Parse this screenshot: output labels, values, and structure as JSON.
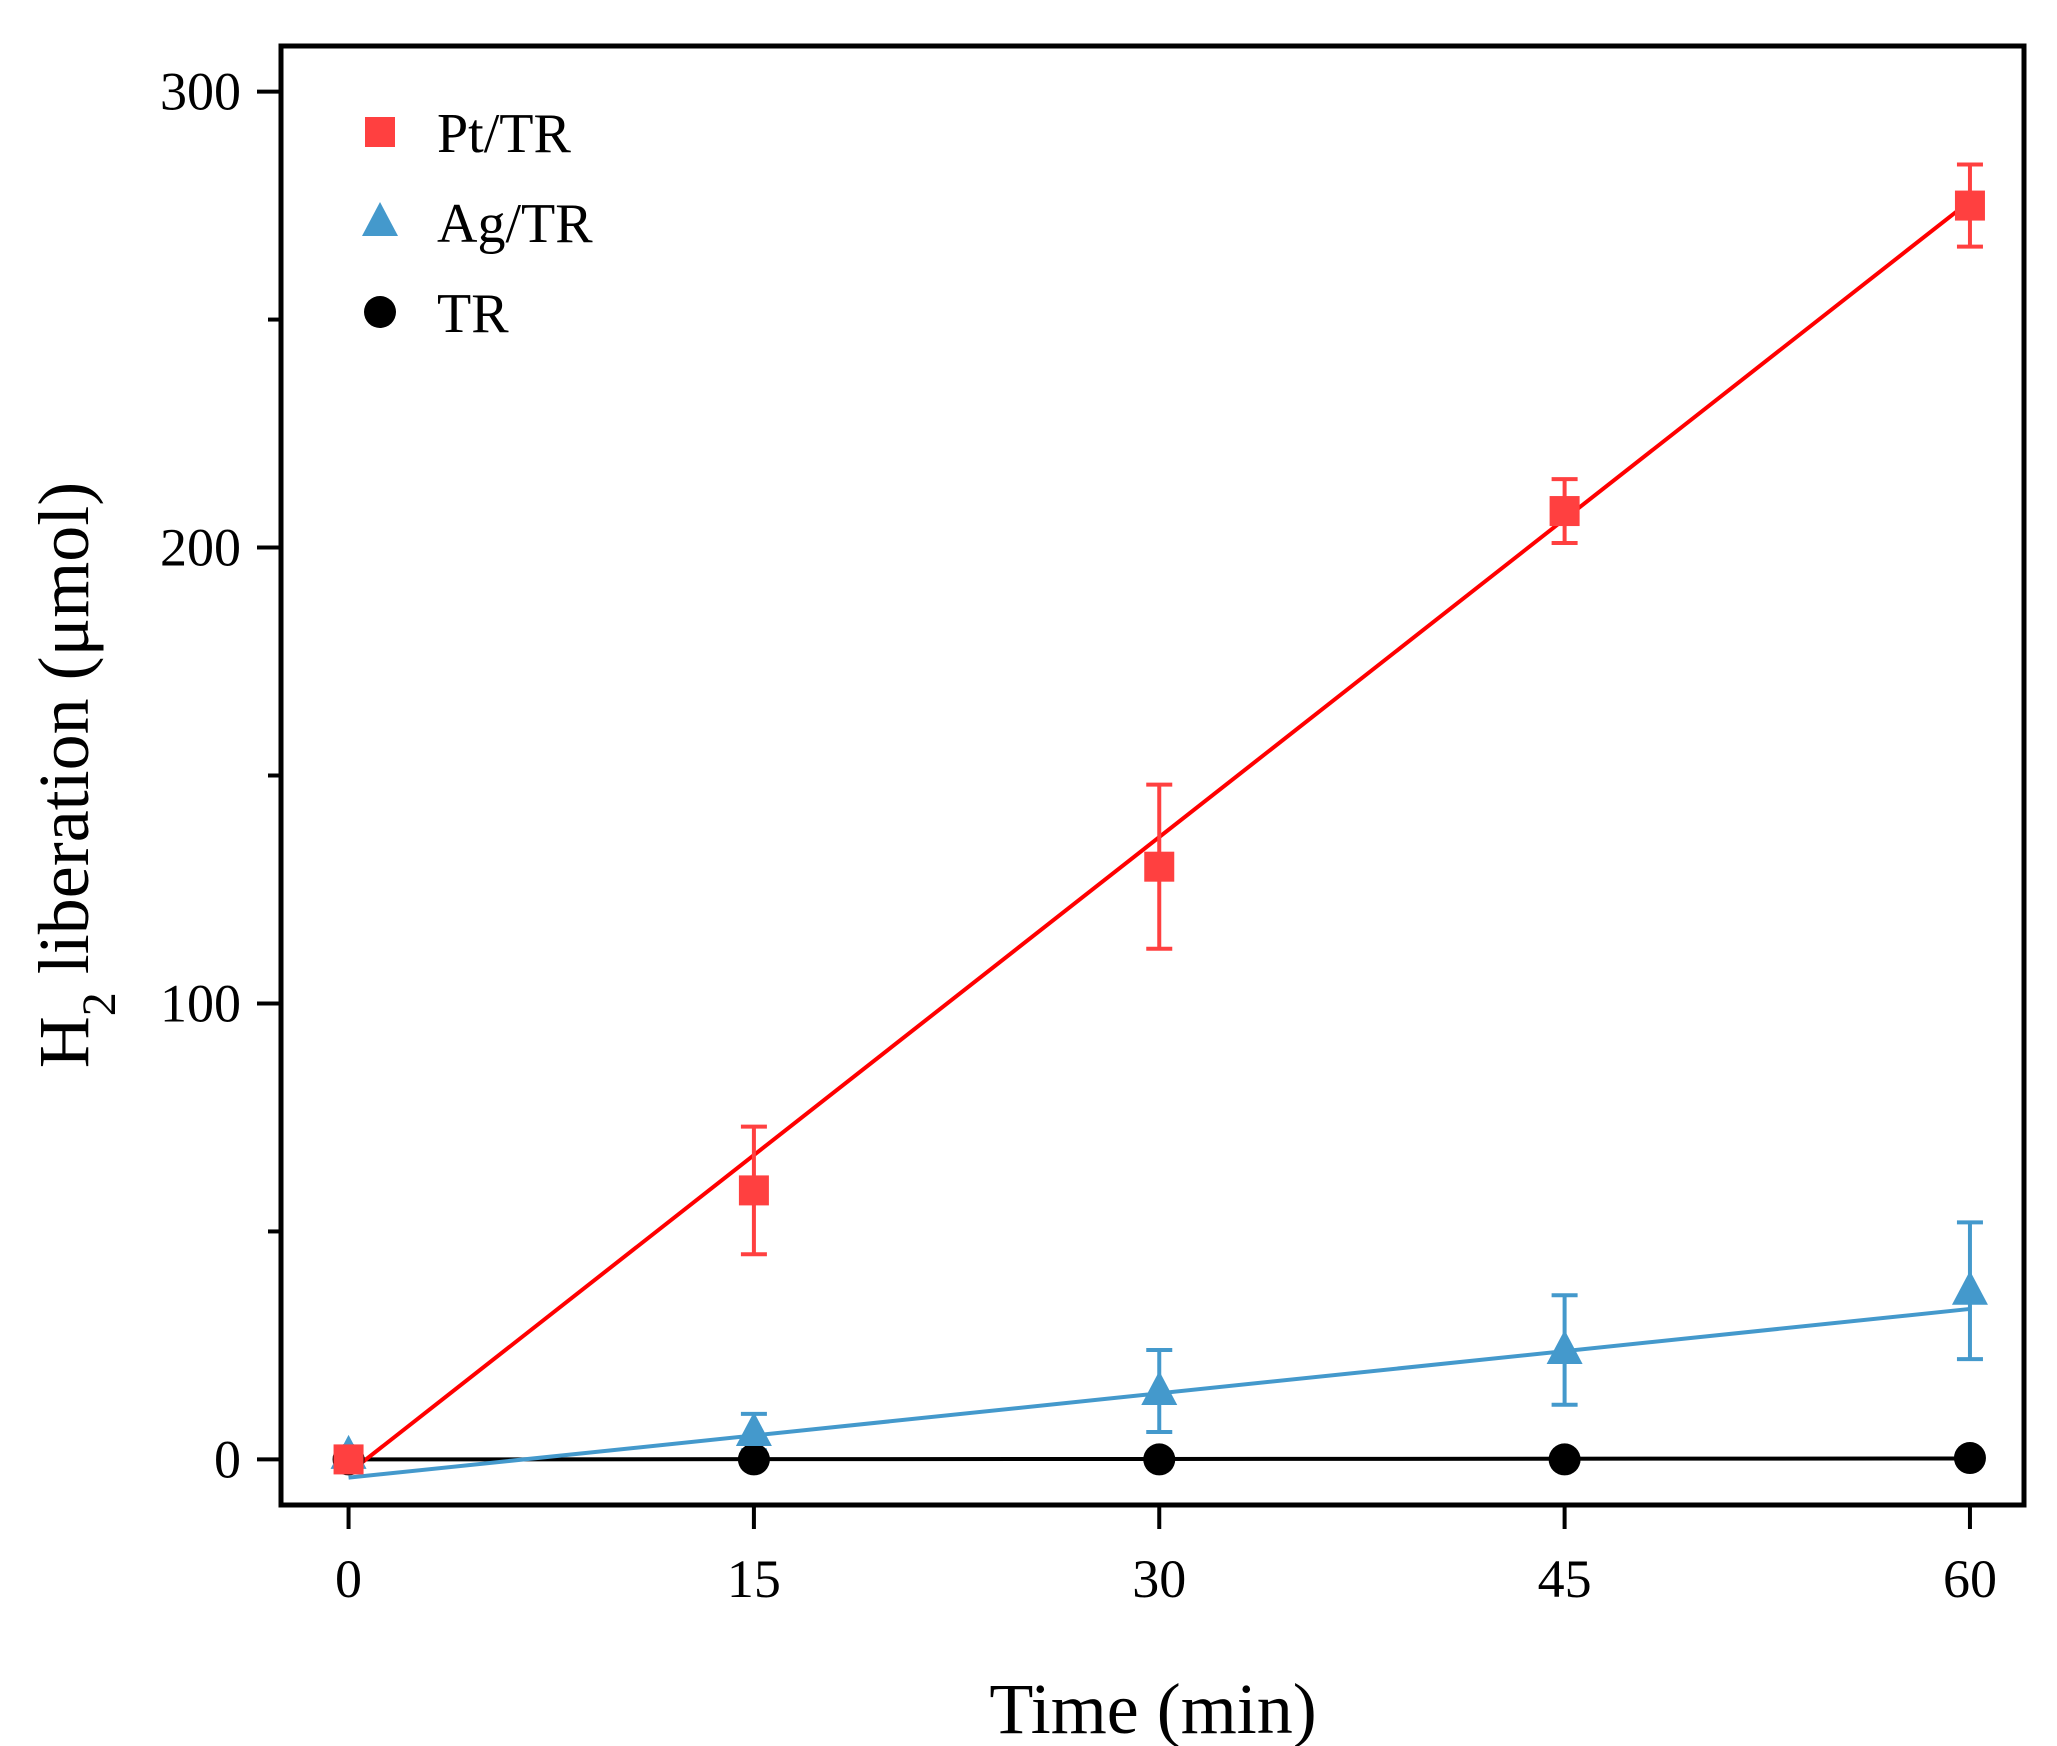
{
  "chart_data": {
    "type": "scatter",
    "title": "",
    "xlabel": "Time (min)",
    "ylabel": {
      "main": "H",
      "subscript": "2",
      "rest": " liberation (μmol)"
    },
    "xlim": [
      -2.5,
      62
    ],
    "ylim": [
      -10,
      310
    ],
    "x_ticks": [
      0,
      15,
      30,
      45,
      60
    ],
    "x_tick_labels": [
      "0",
      "15",
      "30",
      "45",
      "60"
    ],
    "y_ticks": [
      0,
      100,
      200,
      300
    ],
    "y_tick_labels": [
      "0",
      "100",
      "200",
      "300"
    ],
    "y_minor_ticks": [
      50,
      150,
      250
    ],
    "legend_position": "top-left",
    "series": [
      {
        "name": "Pt/TR",
        "marker": "square",
        "color": "#ff4040",
        "fit_color": "#ff0000",
        "x": [
          0,
          15,
          30,
          45,
          60
        ],
        "y": [
          0,
          59,
          130,
          208,
          275
        ],
        "error": [
          0,
          14,
          18,
          7,
          9
        ],
        "fit": {
          "x": [
            0,
            60
          ],
          "y": [
            -3,
            276
          ]
        }
      },
      {
        "name": "Ag/TR",
        "marker": "triangle",
        "color": "#4499cc",
        "fit_color": "#4499cc",
        "x": [
          0,
          15,
          30,
          45,
          60
        ],
        "y": [
          1,
          6,
          15,
          24,
          37
        ],
        "error": [
          0,
          4,
          9,
          12,
          15
        ],
        "fit": {
          "x": [
            0,
            60
          ],
          "y": [
            -4,
            33
          ]
        }
      },
      {
        "name": "TR",
        "marker": "circle",
        "color": "#000000",
        "fit_color": "#000000",
        "x": [
          0,
          15,
          30,
          45,
          60
        ],
        "y": [
          0,
          0,
          0,
          0,
          0.3
        ],
        "error": [
          0,
          0,
          0,
          0,
          0
        ],
        "fit": {
          "x": [
            0,
            60
          ],
          "y": [
            0,
            0.2
          ]
        }
      }
    ]
  }
}
